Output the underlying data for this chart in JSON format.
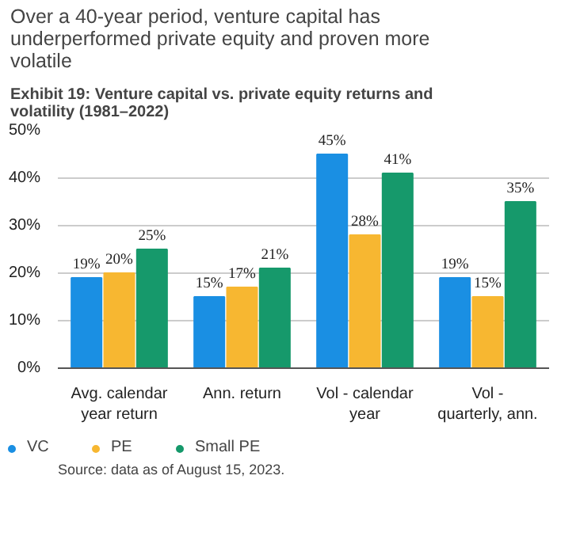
{
  "chart_data": {
    "type": "bar",
    "title": "Over a 40-year period, venture capital has underperformed private equity and proven more volatile",
    "subtitle": "Exhibit 19: Venture capital vs. private equity returns and volatility (1981–2022)",
    "categories": [
      "Avg. calendar year return",
      "Ann. return",
      "Vol - calendar year",
      "Vol - quarterly, ann."
    ],
    "series": [
      {
        "name": "VC",
        "color": "#1a8fe3",
        "values": [
          19,
          15,
          45,
          19
        ],
        "value_labels": [
          "19%",
          "15%",
          "45%",
          "19%"
        ]
      },
      {
        "name": "PE",
        "color": "#f7b731",
        "values": [
          20,
          17,
          28,
          15
        ],
        "value_labels": [
          "20%",
          "17%",
          "28%",
          "15%"
        ]
      },
      {
        "name": "Small PE",
        "color": "#16996b",
        "values": [
          25,
          21,
          41,
          35
        ],
        "value_labels": [
          "25%",
          "21%",
          "41%",
          "35%"
        ]
      }
    ],
    "ylim": [
      0,
      50
    ],
    "yticks": [
      {
        "value": 0,
        "label": "0%"
      },
      {
        "value": 10,
        "label": "10%"
      },
      {
        "value": 20,
        "label": "20%"
      },
      {
        "value": 30,
        "label": "30%"
      },
      {
        "value": 40,
        "label": "40%"
      },
      {
        "value": 50,
        "label": "50%"
      }
    ],
    "grid": "y",
    "legend": "bottom",
    "annotations": [
      "Source: data as of August 15, 2023."
    ]
  }
}
